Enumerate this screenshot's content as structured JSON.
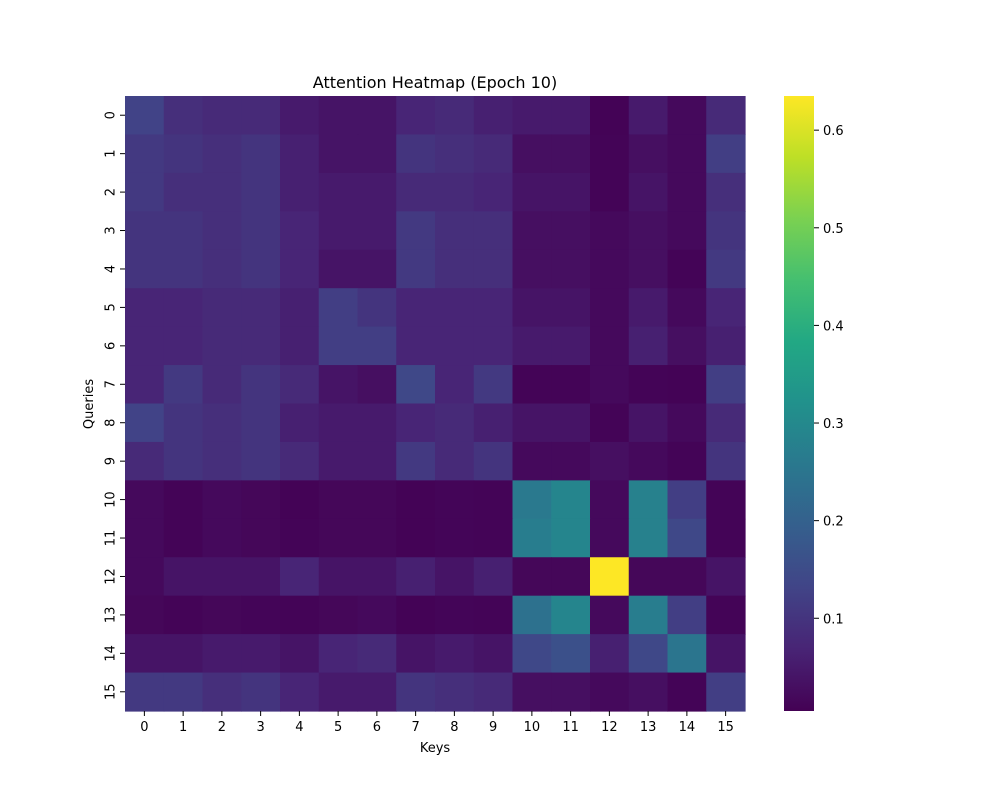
{
  "chart_data": {
    "type": "heatmap",
    "title": "Attention Heatmap (Epoch 10)",
    "xlabel": "Keys",
    "ylabel": "Queries",
    "x_tick_labels": [
      "0",
      "1",
      "2",
      "3",
      "4",
      "5",
      "6",
      "7",
      "8",
      "9",
      "10",
      "11",
      "12",
      "13",
      "14",
      "15"
    ],
    "y_tick_labels": [
      "0",
      "1",
      "2",
      "3",
      "4",
      "5",
      "6",
      "7",
      "8",
      "9",
      "10",
      "11",
      "12",
      "13",
      "14",
      "15"
    ],
    "colormap": "viridis",
    "vmin": 0.005,
    "vmax": 0.635,
    "colorbar_ticks": [
      0.1,
      0.2,
      0.3,
      0.4,
      0.5,
      0.6
    ],
    "colorbar_tick_labels": [
      "0.1",
      "0.2",
      "0.3",
      "0.4",
      "0.5",
      "0.6"
    ],
    "values": [
      [
        0.13,
        0.09,
        0.08,
        0.08,
        0.05,
        0.04,
        0.04,
        0.07,
        0.08,
        0.06,
        0.05,
        0.05,
        0.008,
        0.05,
        0.02,
        0.08
      ],
      [
        0.11,
        0.1,
        0.09,
        0.1,
        0.06,
        0.04,
        0.04,
        0.1,
        0.09,
        0.08,
        0.03,
        0.03,
        0.01,
        0.03,
        0.02,
        0.12
      ],
      [
        0.11,
        0.09,
        0.09,
        0.1,
        0.06,
        0.05,
        0.05,
        0.08,
        0.08,
        0.07,
        0.04,
        0.04,
        0.01,
        0.04,
        0.02,
        0.09
      ],
      [
        0.1,
        0.1,
        0.09,
        0.1,
        0.07,
        0.05,
        0.05,
        0.11,
        0.09,
        0.09,
        0.03,
        0.03,
        0.02,
        0.03,
        0.02,
        0.1
      ],
      [
        0.1,
        0.1,
        0.09,
        0.1,
        0.07,
        0.04,
        0.04,
        0.11,
        0.09,
        0.09,
        0.03,
        0.03,
        0.02,
        0.03,
        0.01,
        0.11
      ],
      [
        0.07,
        0.07,
        0.08,
        0.08,
        0.06,
        0.12,
        0.1,
        0.07,
        0.07,
        0.07,
        0.04,
        0.04,
        0.02,
        0.05,
        0.02,
        0.07
      ],
      [
        0.07,
        0.07,
        0.08,
        0.08,
        0.06,
        0.12,
        0.12,
        0.07,
        0.07,
        0.07,
        0.05,
        0.05,
        0.02,
        0.06,
        0.03,
        0.06
      ],
      [
        0.07,
        0.11,
        0.08,
        0.1,
        0.08,
        0.04,
        0.03,
        0.14,
        0.07,
        0.11,
        0.01,
        0.01,
        0.02,
        0.01,
        0.008,
        0.12
      ],
      [
        0.13,
        0.1,
        0.09,
        0.1,
        0.06,
        0.05,
        0.05,
        0.07,
        0.08,
        0.06,
        0.04,
        0.04,
        0.01,
        0.04,
        0.02,
        0.08
      ],
      [
        0.08,
        0.1,
        0.09,
        0.1,
        0.08,
        0.05,
        0.05,
        0.11,
        0.08,
        0.1,
        0.02,
        0.02,
        0.03,
        0.02,
        0.01,
        0.1
      ],
      [
        0.02,
        0.01,
        0.02,
        0.015,
        0.008,
        0.015,
        0.015,
        0.008,
        0.012,
        0.01,
        0.26,
        0.29,
        0.02,
        0.28,
        0.12,
        0.01
      ],
      [
        0.02,
        0.01,
        0.02,
        0.015,
        0.01,
        0.015,
        0.015,
        0.008,
        0.012,
        0.01,
        0.27,
        0.29,
        0.02,
        0.28,
        0.14,
        0.01
      ],
      [
        0.02,
        0.04,
        0.04,
        0.04,
        0.07,
        0.04,
        0.04,
        0.06,
        0.04,
        0.06,
        0.015,
        0.015,
        0.635,
        0.015,
        0.015,
        0.04
      ],
      [
        0.015,
        0.01,
        0.015,
        0.012,
        0.01,
        0.015,
        0.02,
        0.008,
        0.012,
        0.01,
        0.24,
        0.29,
        0.02,
        0.27,
        0.12,
        0.01
      ],
      [
        0.04,
        0.04,
        0.05,
        0.05,
        0.04,
        0.07,
        0.08,
        0.04,
        0.05,
        0.04,
        0.14,
        0.16,
        0.06,
        0.14,
        0.25,
        0.04
      ],
      [
        0.11,
        0.11,
        0.09,
        0.1,
        0.07,
        0.05,
        0.05,
        0.1,
        0.09,
        0.08,
        0.03,
        0.03,
        0.02,
        0.03,
        0.01,
        0.12
      ]
    ]
  }
}
